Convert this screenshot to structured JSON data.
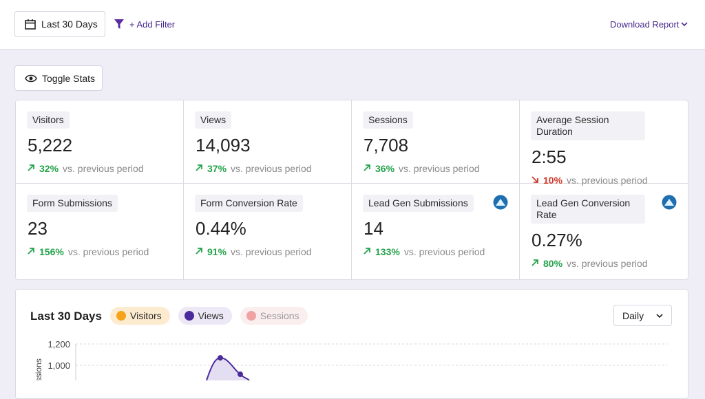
{
  "header": {
    "date_range": "Last 30 Days",
    "add_filter": "+ Add Filter",
    "download": "Download Report"
  },
  "toggle": "Toggle Stats",
  "stats": [
    {
      "label": "Visitors",
      "value": "5,222",
      "change": "32%",
      "comparison": "vs. previous period",
      "trend": "up"
    },
    {
      "label": "Views",
      "value": "14,093",
      "change": "37%",
      "comparison": "vs. previous period",
      "trend": "up"
    },
    {
      "label": "Sessions",
      "value": "7,708",
      "change": "36%",
      "comparison": "vs. previous period",
      "trend": "up"
    },
    {
      "label": "Average Session Duration",
      "value": "2:55",
      "change": "10%",
      "comparison": "vs. previous period",
      "trend": "down"
    },
    {
      "label": "Form Submissions",
      "value": "23",
      "change": "156%",
      "comparison": "vs. previous period",
      "trend": "up"
    },
    {
      "label": "Form Conversion Rate",
      "value": "0.44%",
      "change": "91%",
      "comparison": "vs. previous period",
      "trend": "up"
    },
    {
      "label": "Lead Gen Submissions",
      "value": "14",
      "change": "133%",
      "comparison": "vs. previous period",
      "trend": "up",
      "badge": true
    },
    {
      "label": "Lead Gen Conversion Rate",
      "value": "0.27%",
      "change": "80%",
      "comparison": "vs. previous period",
      "trend": "up",
      "badge": true
    }
  ],
  "chart": {
    "title": "Last 30 Days",
    "period": "Daily",
    "y_axis_label": "Sessions",
    "legend": [
      {
        "name": "Visitors",
        "color": "#f5a31a",
        "bg": "#fdebd0"
      },
      {
        "name": "Views",
        "color": "#4b2a9b",
        "bg": "#ece8f6"
      },
      {
        "name": "Sessions",
        "color": "#f0a3a3",
        "bg": "#fbeeee"
      }
    ],
    "ylim": [
      0,
      1200
    ],
    "yticks": [
      {
        "value": 1000,
        "label": "1,000"
      },
      {
        "value": 1200,
        "label": "1,200"
      }
    ],
    "views_values": [
      1070,
      916
    ]
  }
}
